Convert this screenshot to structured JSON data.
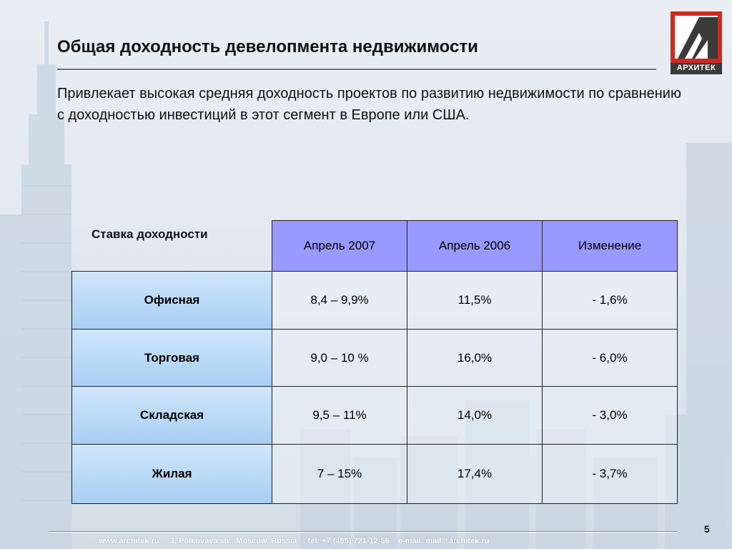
{
  "slide": {
    "title": "Общая доходность девелопмента недвижимости",
    "intro": "Привлекает высокая средняя доходность проектов по развитию недвижимости по сравнению с доходностью инвестиций в этот сегмент в Европе или США.",
    "logo_text": "АРХИТЕК",
    "logo_icon": "architek-logo-icon",
    "page_number": "5"
  },
  "table": {
    "corner_label": "Ставка доходности",
    "columns": [
      "Апрель 2007",
      "Апрель 2006",
      "Изменение"
    ],
    "rows": [
      {
        "label": "Офисная",
        "values": [
          "8,4 – 9,9%",
          "11,5%",
          "- 1,6%"
        ]
      },
      {
        "label": "Торговая",
        "values": [
          "9,0 – 10 %",
          "16,0%",
          "- 6,0%"
        ]
      },
      {
        "label": "Складская",
        "values": [
          "9,5 – 11%",
          "14,0%",
          "- 3,0%"
        ]
      },
      {
        "label": "Жилая",
        "values": [
          "7 – 15%",
          "17,4%",
          "- 3,7%"
        ]
      }
    ]
  },
  "footer": {
    "text": "www.architek.ru     3, Polkovaya str., Moscow, Russia     tel: +7 (495) 721-12-56    e-mail: mail@architek.ru"
  },
  "colors": {
    "column_header": "#9999ff",
    "row_header": "#a8cff4",
    "logo_red": "#d0291f"
  }
}
